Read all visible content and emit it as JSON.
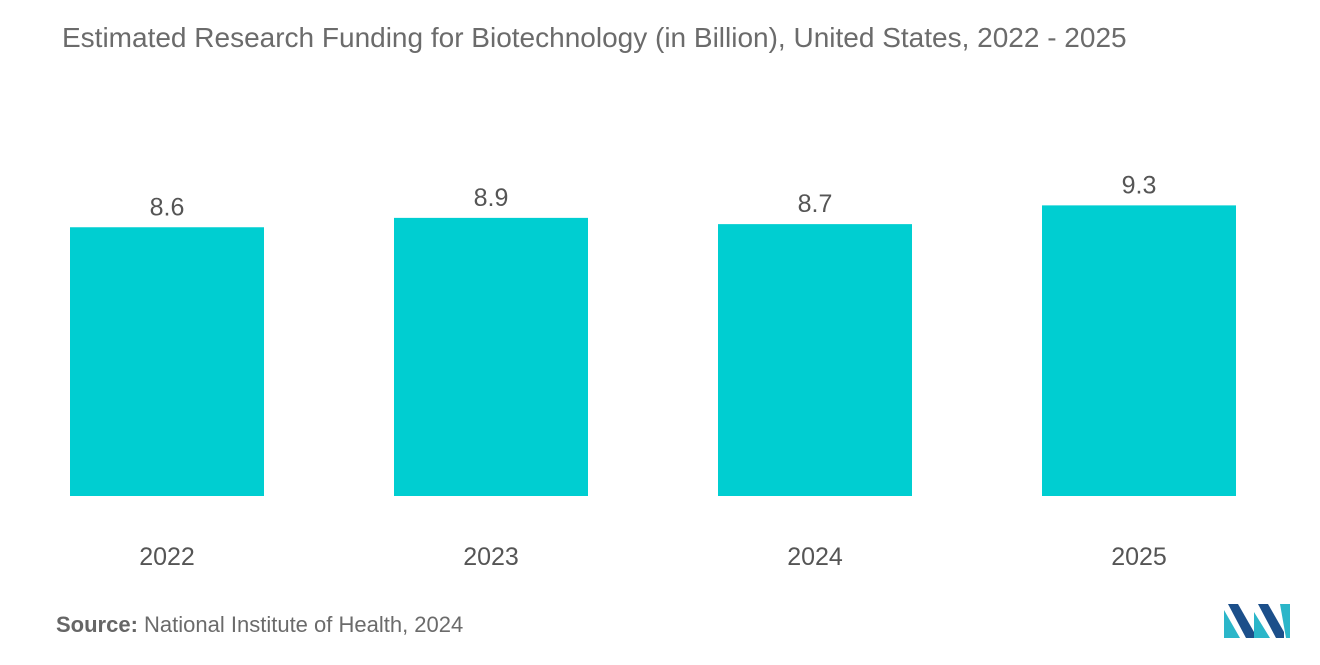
{
  "title": "Estimated Research Funding for Biotechnology (in Billion), United States, 2022 - 2025",
  "source": {
    "label": "Source:",
    "text": "National Institute of Health, 2024"
  },
  "colors": {
    "bar": "#00ced1",
    "text": "#555555",
    "title": "#6b6b6b",
    "logo_dark": "#1c4f8a",
    "logo_light": "#2bb6c9"
  },
  "logo_icon": "mordor-intelligence-logo",
  "chart_data": {
    "type": "bar",
    "title": "Estimated Research Funding for Biotechnology (in Billion), United States, 2022 - 2025",
    "categories": [
      "2022",
      "2023",
      "2024",
      "2025"
    ],
    "values": [
      8.6,
      8.9,
      8.7,
      9.3
    ],
    "data_labels": [
      "8.6",
      "8.9",
      "8.7",
      "9.3"
    ],
    "xlabel": "",
    "ylabel": "",
    "grid": false,
    "legend": "none"
  }
}
